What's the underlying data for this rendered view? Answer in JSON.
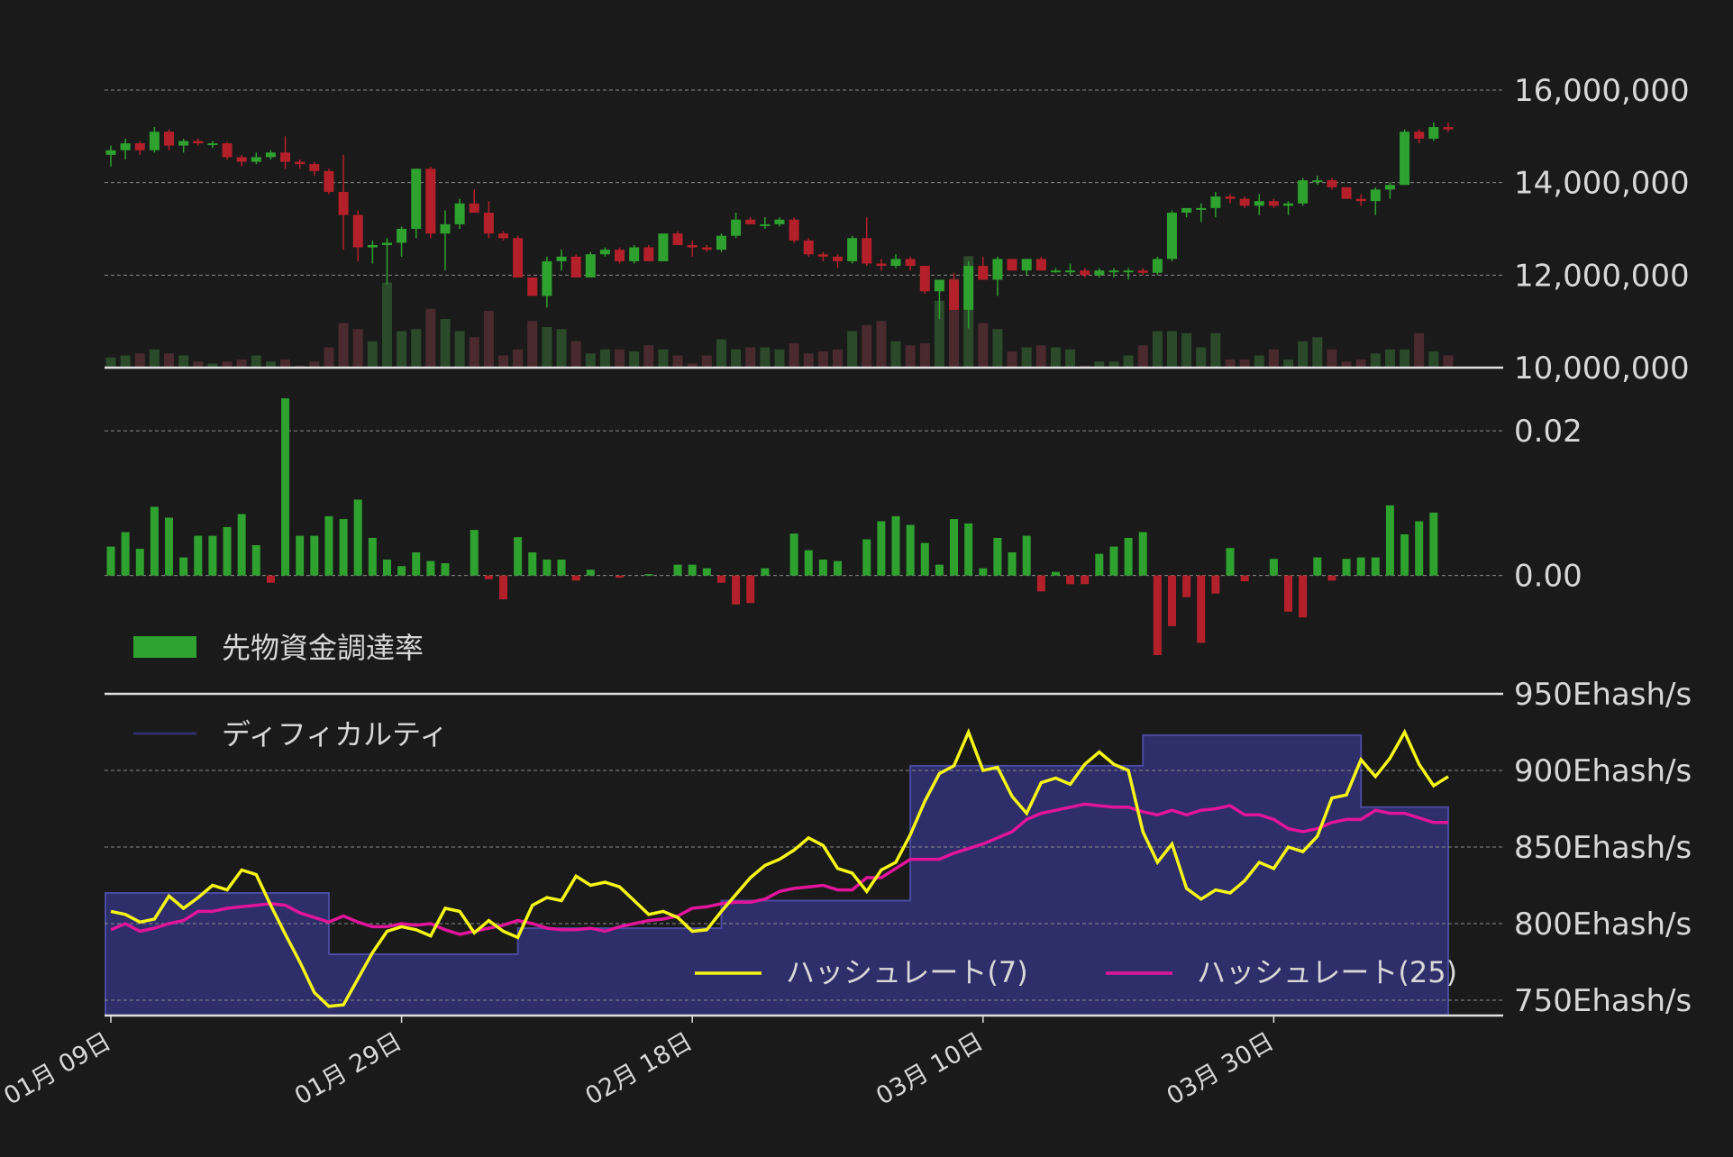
{
  "colors": {
    "background": "#1a1a1a",
    "up": "#2ea12e",
    "down": "#b3202a",
    "volume_up": "#2a4a2a",
    "volume_down": "#4a2a2e",
    "funding": "#2ea12e",
    "funding_negative": "#b3202a",
    "difficulty_fill": "#2e2e6a",
    "difficulty_line": "#4a4aa0",
    "hashrate7": "#f5f518",
    "hashrate25": "#e0159a"
  },
  "chart_data": [
    {
      "type": "candlestick",
      "yticks": [
        "16,000,000",
        "14,000,000",
        "12,000,000",
        "10,000,000"
      ],
      "ylim": [
        10000000,
        16000000
      ],
      "grid": true,
      "ohlc": [
        [
          14600000,
          14800000,
          14350000,
          14700000
        ],
        [
          14700000,
          14950000,
          14500000,
          14850000
        ],
        [
          14850000,
          14900000,
          14600000,
          14700000
        ],
        [
          14700000,
          15200000,
          14650000,
          15100000
        ],
        [
          15100000,
          15150000,
          14700000,
          14800000
        ],
        [
          14800000,
          14950000,
          14650000,
          14900000
        ],
        [
          14900000,
          14950000,
          14800000,
          14850000
        ],
        [
          14850000,
          14900000,
          14750000,
          14850000
        ],
        [
          14850000,
          14880000,
          14500000,
          14550000
        ],
        [
          14550000,
          14600000,
          14350000,
          14450000
        ],
        [
          14450000,
          14650000,
          14400000,
          14550000
        ],
        [
          14550000,
          14700000,
          14500000,
          14650000
        ],
        [
          14650000,
          15000000,
          14300000,
          14450000
        ],
        [
          14450000,
          14500000,
          14300000,
          14400000
        ],
        [
          14400000,
          14450000,
          14150000,
          14250000
        ],
        [
          14250000,
          14300000,
          13750000,
          13800000
        ],
        [
          13800000,
          14600000,
          12550000,
          13300000
        ],
        [
          13300000,
          13400000,
          12300000,
          12600000
        ],
        [
          12600000,
          12750000,
          12250000,
          12650000
        ],
        [
          12650000,
          12800000,
          11800000,
          12700000
        ],
        [
          12700000,
          13050000,
          12400000,
          13000000
        ],
        [
          13000000,
          14300000,
          12800000,
          14300000
        ],
        [
          14300000,
          14350000,
          12800000,
          12900000
        ],
        [
          12900000,
          13400000,
          12100000,
          13100000
        ],
        [
          13100000,
          13650000,
          13000000,
          13550000
        ],
        [
          13550000,
          13850000,
          13350000,
          13350000
        ],
        [
          13350000,
          13600000,
          12800000,
          12900000
        ],
        [
          12900000,
          12950000,
          12750000,
          12800000
        ],
        [
          12800000,
          12850000,
          11950000,
          11950000
        ],
        [
          11950000,
          11950000,
          11550000,
          11550000
        ],
        [
          11550000,
          12400000,
          11300000,
          12300000
        ],
        [
          12300000,
          12550000,
          12100000,
          12400000
        ],
        [
          12400000,
          12450000,
          11950000,
          11950000
        ],
        [
          11950000,
          12500000,
          11950000,
          12450000
        ],
        [
          12450000,
          12600000,
          12400000,
          12550000
        ],
        [
          12550000,
          12600000,
          12250000,
          12300000
        ],
        [
          12300000,
          12650000,
          12250000,
          12600000
        ],
        [
          12600000,
          12650000,
          12300000,
          12300000
        ],
        [
          12300000,
          12900000,
          12300000,
          12900000
        ],
        [
          12900000,
          12950000,
          12650000,
          12650000
        ],
        [
          12650000,
          12750000,
          12400000,
          12600000
        ],
        [
          12600000,
          12650000,
          12500000,
          12550000
        ],
        [
          12550000,
          12900000,
          12500000,
          12850000
        ],
        [
          12850000,
          13350000,
          12800000,
          13200000
        ],
        [
          13200000,
          13250000,
          13100000,
          13100000
        ],
        [
          13100000,
          13250000,
          13000000,
          13100000
        ],
        [
          13100000,
          13250000,
          13050000,
          13200000
        ],
        [
          13200000,
          13250000,
          12700000,
          12750000
        ],
        [
          12750000,
          12800000,
          12400000,
          12450000
        ],
        [
          12450000,
          12500000,
          12300000,
          12400000
        ],
        [
          12400000,
          12450000,
          12150000,
          12300000
        ],
        [
          12300000,
          12850000,
          12250000,
          12800000
        ],
        [
          12800000,
          13250000,
          12200000,
          12250000
        ],
        [
          12250000,
          12350000,
          12100000,
          12200000
        ],
        [
          12200000,
          12450000,
          12150000,
          12350000
        ],
        [
          12350000,
          12400000,
          12100000,
          12200000
        ],
        [
          12200000,
          12200000,
          11600000,
          11650000
        ],
        [
          11650000,
          11900000,
          11050000,
          11900000
        ],
        [
          11900000,
          12050000,
          11250000,
          11250000
        ],
        [
          11250000,
          12300000,
          10850000,
          12200000
        ],
        [
          12200000,
          12400000,
          11900000,
          11900000
        ],
        [
          11900000,
          12400000,
          11550000,
          12350000
        ],
        [
          12350000,
          12350000,
          12100000,
          12100000
        ],
        [
          12100000,
          12350000,
          12000000,
          12350000
        ],
        [
          12350000,
          12400000,
          12100000,
          12100000
        ],
        [
          12100000,
          12150000,
          12050000,
          12100000
        ],
        [
          12100000,
          12250000,
          12000000,
          12100000
        ],
        [
          12100000,
          12150000,
          11950000,
          12000000
        ],
        [
          12000000,
          12150000,
          11950000,
          12100000
        ],
        [
          12100000,
          12150000,
          11950000,
          12100000
        ],
        [
          12100000,
          12150000,
          11900000,
          12100000
        ],
        [
          12100000,
          12150000,
          12000000,
          12050000
        ],
        [
          12050000,
          12400000,
          12000000,
          12350000
        ],
        [
          12350000,
          13400000,
          12300000,
          13350000
        ],
        [
          13350000,
          13450000,
          13250000,
          13450000
        ],
        [
          13450000,
          13550000,
          13150000,
          13450000
        ],
        [
          13450000,
          13800000,
          13250000,
          13700000
        ],
        [
          13700000,
          13750000,
          13550000,
          13650000
        ],
        [
          13650000,
          13700000,
          13450000,
          13500000
        ],
        [
          13500000,
          13750000,
          13300000,
          13600000
        ],
        [
          13600000,
          13650000,
          13450000,
          13500000
        ],
        [
          13500000,
          13600000,
          13300000,
          13550000
        ],
        [
          13550000,
          14100000,
          13500000,
          14050000
        ],
        [
          14050000,
          14150000,
          13950000,
          14050000
        ],
        [
          14050000,
          14100000,
          13850000,
          13900000
        ],
        [
          13900000,
          13850000,
          13650000,
          13650000
        ],
        [
          13650000,
          13750000,
          13500000,
          13600000
        ],
        [
          13600000,
          13900000,
          13300000,
          13850000
        ],
        [
          13850000,
          14000000,
          13650000,
          13950000
        ],
        [
          13950000,
          15150000,
          13950000,
          15100000
        ],
        [
          15100000,
          15150000,
          14850000,
          14950000
        ],
        [
          14950000,
          15300000,
          14900000,
          15200000
        ],
        [
          15200000,
          15300000,
          15100000,
          15150000
        ]
      ],
      "volume": [
        0.25,
        0.3,
        0.35,
        0.45,
        0.35,
        0.3,
        0.15,
        0.1,
        0.15,
        0.2,
        0.3,
        0.15,
        0.2,
        0.05,
        0.15,
        0.5,
        1.1,
        0.95,
        0.65,
        2.1,
        0.9,
        0.95,
        1.45,
        1.2,
        0.9,
        0.75,
        1.4,
        0.3,
        0.45,
        1.15,
        1.0,
        0.95,
        0.65,
        0.35,
        0.45,
        0.45,
        0.4,
        0.55,
        0.45,
        0.3,
        0.1,
        0.3,
        0.7,
        0.45,
        0.5,
        0.5,
        0.45,
        0.6,
        0.35,
        0.4,
        0.45,
        0.9,
        1.05,
        1.15,
        0.65,
        0.55,
        0.6,
        1.65,
        2.2,
        2.75,
        1.1,
        0.95,
        0.4,
        0.5,
        0.55,
        0.5,
        0.45,
        0.05,
        0.15,
        0.15,
        0.3,
        0.55,
        0.9,
        0.9,
        0.85,
        0.5,
        0.85,
        0.2,
        0.2,
        0.3,
        0.45,
        0.2,
        0.65,
        0.75,
        0.45,
        0.15,
        0.2,
        0.35,
        0.45,
        0.45,
        0.85,
        0.4,
        0.3
      ]
    },
    {
      "type": "bar",
      "name": "先物資金調達率",
      "yticks": [
        "0.02",
        "0.00"
      ],
      "ylim": [
        -0.012,
        0.026
      ],
      "values": [
        0.004,
        0.006,
        0.0037,
        0.0095,
        0.008,
        0.0025,
        0.0055,
        0.0055,
        0.0067,
        0.0085,
        0.0042,
        -0.001,
        0.0245,
        0.0055,
        0.0055,
        0.0082,
        0.0078,
        0.0105,
        0.0052,
        0.0022,
        0.0013,
        0.0032,
        0.002,
        0.0017,
        0.0,
        0.0063,
        -0.0005,
        -0.0033,
        0.0053,
        0.0032,
        0.0022,
        0.0022,
        -0.0007,
        0.0008,
        0.0,
        -0.0003,
        0.0,
        0.0002,
        0.0,
        0.0015,
        0.0015,
        0.001,
        -0.001,
        -0.004,
        -0.0038,
        0.001,
        0.0,
        0.0058,
        0.0035,
        0.0022,
        0.002,
        0.0,
        0.005,
        0.0075,
        0.0082,
        0.007,
        0.0045,
        0.0015,
        0.0078,
        0.0072,
        0.001,
        0.0052,
        0.0032,
        0.0055,
        -0.0022,
        0.0005,
        -0.0012,
        -0.0012,
        0.003,
        0.004,
        0.0052,
        0.006,
        -0.011,
        -0.007,
        -0.003,
        -0.0093,
        -0.0025,
        0.0038,
        -0.0008,
        0.0,
        0.0023,
        -0.005,
        -0.0058,
        0.0025,
        -0.0007,
        0.0023,
        0.0025,
        0.0025,
        0.0097,
        0.0057,
        0.0075,
        0.0087
      ]
    },
    {
      "type": "line",
      "yticks": [
        "950Ehash/s",
        "900Ehash/s",
        "850Ehash/s",
        "800Ehash/s",
        "750Ehash/s"
      ],
      "ylim": [
        740,
        950
      ],
      "series": [
        {
          "name": "ディフィカルティ",
          "type": "area",
          "values": [
            820,
            820,
            820,
            820,
            820,
            820,
            820,
            820,
            820,
            820,
            820,
            820,
            820,
            820,
            820,
            780,
            780,
            780,
            780,
            780,
            780,
            780,
            780,
            780,
            780,
            780,
            780,
            780,
            797,
            797,
            797,
            797,
            797,
            797,
            797,
            797,
            797,
            797,
            797,
            797,
            797,
            797,
            815,
            815,
            815,
            815,
            815,
            815,
            815,
            815,
            815,
            815,
            815,
            815,
            815,
            903,
            903,
            903,
            903,
            903,
            903,
            903,
            903,
            903,
            903,
            903,
            903,
            903,
            903,
            903,
            903,
            923,
            923,
            923,
            923,
            923,
            923,
            923,
            923,
            923,
            923,
            923,
            923,
            923,
            923,
            923,
            876,
            876,
            876,
            876,
            876,
            876,
            876
          ]
        },
        {
          "name": "ハッシュレート(7)",
          "values": [
            808,
            806,
            801,
            803,
            818,
            810,
            817,
            825,
            822,
            835,
            832,
            812,
            793,
            775,
            755,
            746,
            747,
            764,
            781,
            795,
            798,
            796,
            792,
            810,
            808,
            794,
            802,
            795,
            791,
            812,
            817,
            815,
            831,
            825,
            827,
            824,
            815,
            806,
            808,
            804,
            795,
            796,
            808,
            819,
            830,
            838,
            842,
            848,
            856,
            851,
            836,
            833,
            821,
            835,
            840,
            858,
            880,
            898,
            903,
            925,
            900,
            902,
            883,
            872,
            892,
            895,
            891,
            904,
            912,
            904,
            900,
            860,
            840,
            852,
            823,
            816,
            822,
            820,
            828,
            840,
            836,
            850,
            847,
            857,
            882,
            884,
            907,
            896,
            908,
            925,
            904,
            890,
            896
          ]
        },
        {
          "name": "ハッシュレート(25)",
          "values": [
            796,
            800,
            795,
            797,
            800,
            802,
            808,
            808,
            810,
            811,
            812,
            813,
            812,
            807,
            804,
            801,
            805,
            801,
            798,
            798,
            800,
            799,
            800,
            796,
            793,
            795,
            797,
            799,
            802,
            800,
            797,
            796,
            796,
            797,
            795,
            798,
            800,
            802,
            803,
            805,
            810,
            811,
            813,
            814,
            814,
            816,
            821,
            823,
            824,
            825,
            822,
            822,
            830,
            830,
            836,
            842,
            842,
            842,
            846,
            849,
            852,
            856,
            860,
            868,
            872,
            874,
            876,
            878,
            877,
            876,
            876,
            873,
            871,
            874,
            871,
            874,
            875,
            877,
            871,
            871,
            868,
            862,
            860,
            862,
            866,
            868,
            868,
            874,
            872,
            872,
            869,
            866,
            866
          ]
        }
      ]
    }
  ],
  "xaxis": {
    "ticks": [
      "01月 09日",
      "01月 29日",
      "02月 18日",
      "03月 10日",
      "03月 30日"
    ]
  },
  "legends": {
    "funding": "先物資金調達率",
    "difficulty": "ディフィカルティ",
    "hashrate7": "ハッシュレート(7)",
    "hashrate25": "ハッシュレート(25)"
  }
}
